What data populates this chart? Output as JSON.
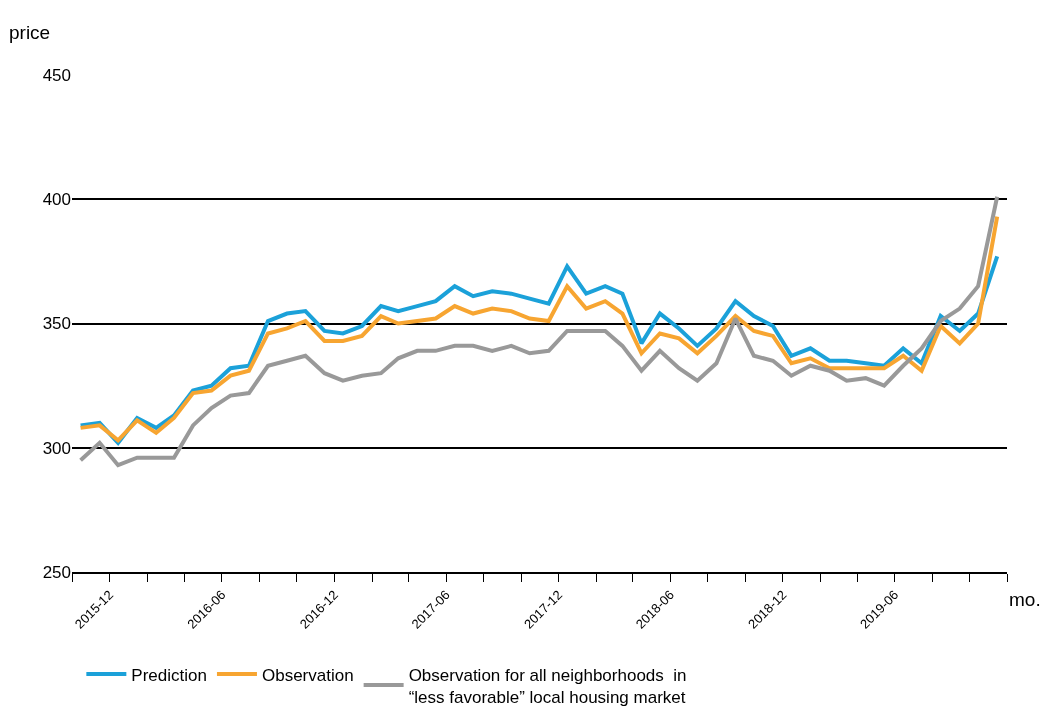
{
  "chart_data": {
    "type": "line",
    "xlabel": "mo.",
    "ylabel": "price",
    "x": [
      "2015-10-15",
      "2015-11-15",
      "2015-12-15",
      "2016-01-15",
      "2016-02-15",
      "2016-03-15",
      "2016-04-15",
      "2016-05-15",
      "2016-06-15",
      "2016-07-15",
      "2016-08-15",
      "2016-09-15",
      "2016-10-15",
      "2016-11-15",
      "2016-12-15",
      "2017-01-15",
      "2017-02-15",
      "2017-03-15",
      "2017-04-15",
      "2017-05-15",
      "2017-06-15",
      "2017-07-15",
      "2017-08-15",
      "2017-09-15",
      "2017-10-15",
      "2017-11-15",
      "2017-12-15",
      "2018-01-15",
      "2018-02-15",
      "2018-03-15",
      "2018-04-15",
      "2018-05-15",
      "2018-06-15",
      "2018-07-15",
      "2018-08-15",
      "2018-09-15",
      "2018-10-15",
      "2018-11-15",
      "2018-12-15",
      "2019-01-15",
      "2019-02-15",
      "2019-03-15",
      "2019-04-15",
      "2019-05-15",
      "2019-06-15",
      "2019-07-15",
      "2019-08-15",
      "2019-09-15",
      "2019-10-15",
      "2019-11-15"
    ],
    "series": [
      {
        "name": "Prediction",
        "color": "#1ba1d9",
        "values": [
          309,
          310,
          302,
          312,
          308,
          313,
          323,
          325,
          332,
          333,
          351,
          354,
          355,
          347,
          346,
          349,
          357,
          355,
          357,
          359,
          365,
          361,
          363,
          362,
          360,
          358,
          373,
          362,
          365,
          362,
          342,
          354,
          348,
          341,
          348,
          359,
          353,
          349,
          337,
          340,
          335,
          335,
          334,
          333,
          340,
          334,
          353,
          347,
          354,
          377
        ]
      },
      {
        "name": "Observation",
        "color": "#f7a531",
        "values": [
          308,
          309,
          303,
          311,
          306,
          312,
          322,
          323,
          329,
          331,
          346,
          348,
          351,
          343,
          343,
          345,
          353,
          350,
          351,
          352,
          357,
          354,
          356,
          355,
          352,
          351,
          365,
          356,
          359,
          354,
          338,
          346,
          344,
          338,
          345,
          353,
          347,
          345,
          334,
          336,
          332,
          332,
          332,
          332,
          337,
          331,
          349,
          342,
          350,
          393
        ]
      },
      {
        "name": "Observation for all neighborhoods  in\n“less favorable” local housing market",
        "color": "#999999",
        "values": [
          295,
          302,
          293,
          296,
          296,
          296,
          309,
          316,
          321,
          322,
          333,
          335,
          337,
          330,
          327,
          329,
          330,
          336,
          339,
          339,
          341,
          341,
          339,
          341,
          338,
          339,
          347,
          347,
          347,
          341,
          331,
          339,
          332,
          327,
          334,
          352,
          337,
          335,
          329,
          333,
          331,
          327,
          328,
          325,
          333,
          340,
          351,
          356,
          365,
          401
        ]
      }
    ],
    "xlim": [
      "2015-10-01",
      "2019-12-01"
    ],
    "xticks": [
      {
        "value": "2015-10-01",
        "label": null
      },
      {
        "value": "2015-12-01",
        "label": "2015-12"
      },
      {
        "value": "2016-02-01",
        "label": null
      },
      {
        "value": "2016-04-01",
        "label": null
      },
      {
        "value": "2016-06-01",
        "label": "2016-06"
      },
      {
        "value": "2016-08-01",
        "label": null
      },
      {
        "value": "2016-10-01",
        "label": null
      },
      {
        "value": "2016-12-01",
        "label": "2016-12"
      },
      {
        "value": "2017-02-01",
        "label": null
      },
      {
        "value": "2017-04-01",
        "label": null
      },
      {
        "value": "2017-06-01",
        "label": "2017-06"
      },
      {
        "value": "2017-08-01",
        "label": null
      },
      {
        "value": "2017-10-01",
        "label": null
      },
      {
        "value": "2017-12-01",
        "label": "2017-12"
      },
      {
        "value": "2018-02-01",
        "label": null
      },
      {
        "value": "2018-04-01",
        "label": null
      },
      {
        "value": "2018-06-01",
        "label": "2018-06"
      },
      {
        "value": "2018-08-01",
        "label": null
      },
      {
        "value": "2018-10-01",
        "label": null
      },
      {
        "value": "2018-12-01",
        "label": "2018-12"
      },
      {
        "value": "2019-02-01",
        "label": null
      },
      {
        "value": "2019-04-01",
        "label": null
      },
      {
        "value": "2019-06-01",
        "label": "2019-06"
      },
      {
        "value": "2019-08-01",
        "label": null
      },
      {
        "value": "2019-10-01",
        "label": null
      },
      {
        "value": "2019-12-01",
        "label": null
      }
    ],
    "ylim": [
      250,
      450
    ],
    "yticks": [
      250,
      300,
      350,
      400,
      450
    ],
    "grid": "y",
    "legend": "bottom",
    "marker": "none",
    "line_style": "solid"
  }
}
